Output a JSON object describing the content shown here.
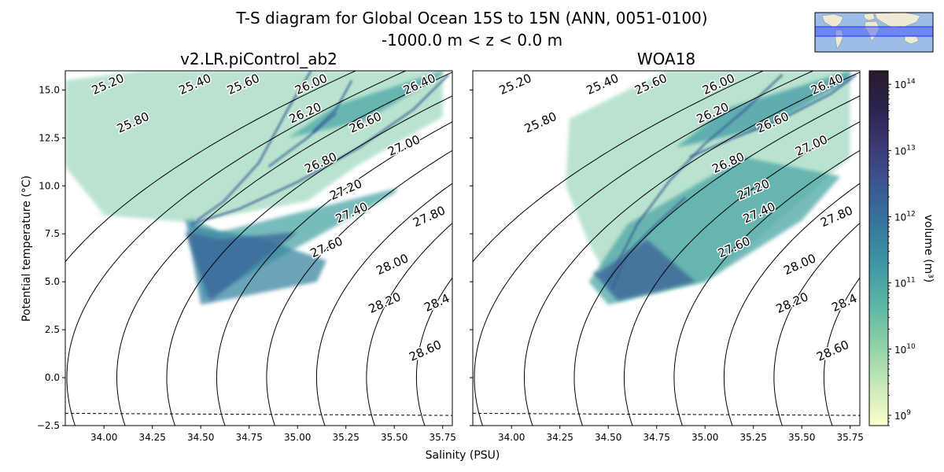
{
  "figure": {
    "title_line1": "T-S diagram for Global Ocean 15S to 15N (ANN, 0051-0100)",
    "title_line2": "-1000.0 m < z < 0.0 m",
    "xlabel": "Salinity (PSU)",
    "ylabel": "Potential temperature (°C)",
    "colorbar_label": "volume (m³)",
    "inset_map": "global map with 15S-15N band highlighted"
  },
  "chart_data": {
    "type": "scatter",
    "xlim": [
      33.8,
      35.8
    ],
    "ylim": [
      -2.5,
      16.0
    ],
    "x_ticks": [
      34.0,
      34.25,
      34.5,
      34.75,
      35.0,
      35.25,
      35.5,
      35.75
    ],
    "x_tick_labels": [
      "34.00",
      "34.25",
      "34.50",
      "34.75",
      "35.00",
      "35.25",
      "35.50",
      "35.75"
    ],
    "y_ticks": [
      -2.5,
      0.0,
      2.5,
      5.0,
      7.5,
      10.0,
      12.5,
      15.0
    ],
    "y_tick_labels": [
      "−2.5",
      "0.0",
      "2.5",
      "5.0",
      "7.5",
      "10.0",
      "12.5",
      "15.0"
    ],
    "density_contours": [
      25.2,
      25.4,
      25.6,
      25.8,
      26.0,
      26.2,
      26.4,
      26.6,
      26.8,
      27.0,
      27.2,
      27.4,
      27.6,
      27.8,
      28.0,
      28.2,
      28.4,
      28.6
    ],
    "freezing_line": {
      "style": "dashed",
      "x": [
        33.8,
        35.8
      ],
      "y": [
        -1.86,
        -1.97
      ]
    },
    "colorbar": {
      "scale": "log",
      "range": [
        700000000.0,
        160000000000000.0
      ],
      "ticks": [
        1000000000.0,
        10000000000.0,
        100000000000.0,
        1000000000000.0,
        10000000000000.0,
        100000000000000.0
      ],
      "tick_labels": [
        "10",
        "10",
        "10",
        "10",
        "10",
        "10"
      ],
      "tick_exponents": [
        "9",
        "10",
        "11",
        "12",
        "13",
        "14"
      ],
      "colormap": "cmocean deep",
      "colors": [
        "#fdfecc",
        "#c8e9b8",
        "#8fd3a7",
        "#5cb8a6",
        "#3f9aa4",
        "#357aa0",
        "#3a5a95",
        "#3d3b7a",
        "#2c2350",
        "#281a2c"
      ]
    },
    "panels": [
      {
        "title": "v2.LR.piControl_ab2",
        "contour_label_positions": {
          "25.20": [
            34.02,
            15.3
          ],
          "25.40": [
            34.47,
            15.3
          ],
          "25.60": [
            34.72,
            15.3
          ],
          "26.00": [
            35.07,
            15.3
          ],
          "26.40": [
            35.63,
            15.3
          ],
          "25.80": [
            34.15,
            13.3
          ],
          "26.20": [
            35.04,
            13.8
          ],
          "26.60": [
            35.35,
            13.3
          ],
          "27.00": [
            35.55,
            12.1
          ],
          "26.80": [
            35.12,
            11.2
          ],
          "27.20": [
            35.25,
            9.8
          ],
          "27.40": [
            35.28,
            8.6
          ],
          "27.80": [
            35.68,
            8.4
          ],
          "27.60": [
            35.15,
            6.8
          ],
          "28.00": [
            35.49,
            5.9
          ],
          "28.20": [
            35.45,
            3.9
          ],
          "28.4": [
            35.72,
            3.9
          ],
          "28.60": [
            35.66,
            1.4
          ]
        },
        "volume_regions": [
          {
            "s": [
              33.95,
              34.45,
              35.05,
              35.3,
              35.75,
              35.75,
              34.85,
              34.2,
              33.8,
              33.8,
              34.0
            ],
            "t": [
              8.5,
              8.1,
              9.2,
              11.0,
              13.6,
              16.0,
              16.0,
              16.0,
              15.5,
              11.0,
              8.5
            ],
            "level": 10.2
          },
          {
            "s": [
              34.44,
              34.52,
              35.5,
              35.52,
              34.6,
              34.46
            ],
            "t": [
              8.2,
              4.1,
              9.6,
              9.9,
              7.6,
              8.3
            ],
            "level": 11.0
          },
          {
            "s": [
              34.42,
              34.5,
              35.1,
              35.15,
              34.8,
              34.5,
              34.42
            ],
            "t": [
              8.3,
              3.8,
              5.0,
              6.1,
              7.3,
              7.8,
              8.3
            ],
            "level": 11.6
          },
          {
            "s": [
              34.42,
              34.55,
              35.0,
              34.6,
              34.42
            ],
            "t": [
              7.6,
              4.0,
              7.6,
              7.2,
              7.6
            ],
            "level": 12.2
          },
          {
            "s": [
              34.95,
              35.35,
              35.75,
              35.75,
              35.2,
              34.95
            ],
            "t": [
              12.5,
              13.4,
              15.8,
              16.0,
              14.2,
              12.5
            ],
            "level": 11.0
          }
        ],
        "ridges": [
          {
            "s": [
              34.48,
              34.62,
              34.8,
              34.95,
              35.07
            ],
            "t": [
              8.2,
              9.2,
              11.2,
              14.0,
              16.0
            ]
          },
          {
            "s": [
              34.85,
              35.05,
              35.2
            ],
            "t": [
              11.0,
              12.5,
              13.8
            ]
          },
          {
            "s": [
              34.45,
              34.7,
              35.0,
              35.32,
              35.6,
              35.78
            ],
            "t": [
              8.0,
              8.8,
              10.2,
              12.0,
              14.0,
              15.8
            ]
          },
          {
            "s": [
              35.08,
              35.2,
              35.28
            ],
            "t": [
              12.8,
              14.0,
              15.5
            ]
          }
        ]
      },
      {
        "title": "WOA18",
        "contour_label_positions": {
          "25.20": [
            34.02,
            15.3
          ],
          "25.40": [
            34.47,
            15.3
          ],
          "25.60": [
            34.72,
            15.3
          ],
          "26.00": [
            35.07,
            15.3
          ],
          "26.40": [
            35.63,
            15.3
          ],
          "25.80": [
            34.15,
            13.3
          ],
          "26.20": [
            35.04,
            13.8
          ],
          "26.60": [
            35.35,
            13.3
          ],
          "27.00": [
            35.55,
            12.1
          ],
          "26.80": [
            35.12,
            11.2
          ],
          "27.20": [
            35.25,
            9.8
          ],
          "27.40": [
            35.28,
            8.6
          ],
          "27.80": [
            35.68,
            8.4
          ],
          "27.60": [
            35.15,
            6.8
          ],
          "28.00": [
            35.49,
            5.9
          ],
          "28.20": [
            35.45,
            3.9
          ],
          "28.4": [
            35.72,
            3.9
          ],
          "28.60": [
            35.66,
            1.4
          ]
        },
        "volume_regions": [
          {
            "s": [
              34.4,
              34.55,
              35.0,
              35.3,
              35.75,
              35.75,
              34.8,
              34.3,
              34.28,
              34.4
            ],
            "t": [
              7.0,
              4.2,
              5.0,
              7.5,
              11.5,
              16.0,
              16.0,
              13.5,
              10.0,
              7.0
            ],
            "level": 10.2
          },
          {
            "s": [
              34.4,
              34.5,
              35.0,
              35.5,
              35.7,
              35.2,
              34.6,
              34.4
            ],
            "t": [
              5.0,
              3.8,
              5.0,
              8.2,
              10.5,
              11.5,
              8.0,
              5.0
            ],
            "level": 11.0
          },
          {
            "s": [
              34.42,
              34.55,
              34.95,
              34.7,
              34.45
            ],
            "t": [
              5.5,
              4.0,
              5.0,
              7.2,
              5.5
            ],
            "level": 12.3
          },
          {
            "s": [
              34.85,
              35.3,
              35.75,
              35.75,
              35.1,
              34.85
            ],
            "t": [
              12.0,
              13.0,
              15.5,
              16.0,
              14.0,
              12.0
            ],
            "level": 11.2
          }
        ],
        "ridges": [
          {
            "s": [
              34.5,
              34.65,
              34.82,
              35.0,
              35.2,
              35.4
            ],
            "t": [
              5.0,
              8.0,
              10.3,
              12.2,
              13.9,
              15.8
            ]
          },
          {
            "s": [
              34.92,
              35.15,
              35.4,
              35.65,
              35.78
            ],
            "t": [
              11.5,
              12.5,
              13.5,
              14.8,
              15.8
            ]
          },
          {
            "s": [
              34.52,
              34.6,
              34.75,
              34.9
            ],
            "t": [
              4.6,
              6.5,
              8.0,
              9.4
            ]
          }
        ]
      }
    ]
  }
}
